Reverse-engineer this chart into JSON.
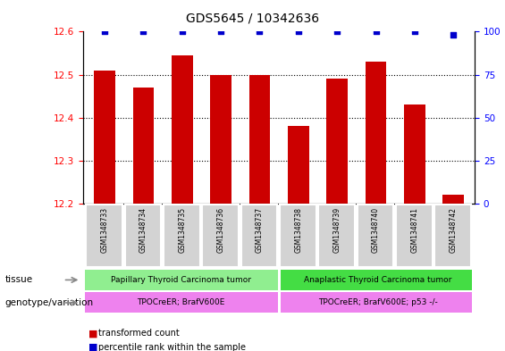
{
  "title": "GDS5645 / 10342636",
  "samples": [
    "GSM1348733",
    "GSM1348734",
    "GSM1348735",
    "GSM1348736",
    "GSM1348737",
    "GSM1348738",
    "GSM1348739",
    "GSM1348740",
    "GSM1348741",
    "GSM1348742"
  ],
  "transformed_counts": [
    12.51,
    12.47,
    12.545,
    12.5,
    12.5,
    12.38,
    12.49,
    12.53,
    12.43,
    12.22
  ],
  "percentile_values": [
    100,
    100,
    100,
    100,
    100,
    100,
    100,
    100,
    100,
    98
  ],
  "ylim_left": [
    12.2,
    12.6
  ],
  "ylim_right": [
    0,
    100
  ],
  "yticks_left": [
    12.2,
    12.3,
    12.4,
    12.5,
    12.6
  ],
  "yticks_right": [
    0,
    25,
    50,
    75,
    100
  ],
  "bar_color": "#cc0000",
  "dot_color": "#0000cc",
  "tissue_color_1": "#90ee90",
  "tissue_color_2": "#44dd44",
  "genotype_color": "#ee82ee",
  "tissue_labels": [
    "Papillary Thyroid Carcinoma tumor",
    "Anaplastic Thyroid Carcinoma tumor"
  ],
  "genotype_labels": [
    "TPOCreER; BrafV600E",
    "TPOCreER; BrafV600E; p53 -/-"
  ],
  "tissue_split": 5,
  "legend_red_label": "transformed count",
  "legend_blue_label": "percentile rank within the sample",
  "tissue_row_label": "tissue",
  "genotype_row_label": "genotype/variation"
}
